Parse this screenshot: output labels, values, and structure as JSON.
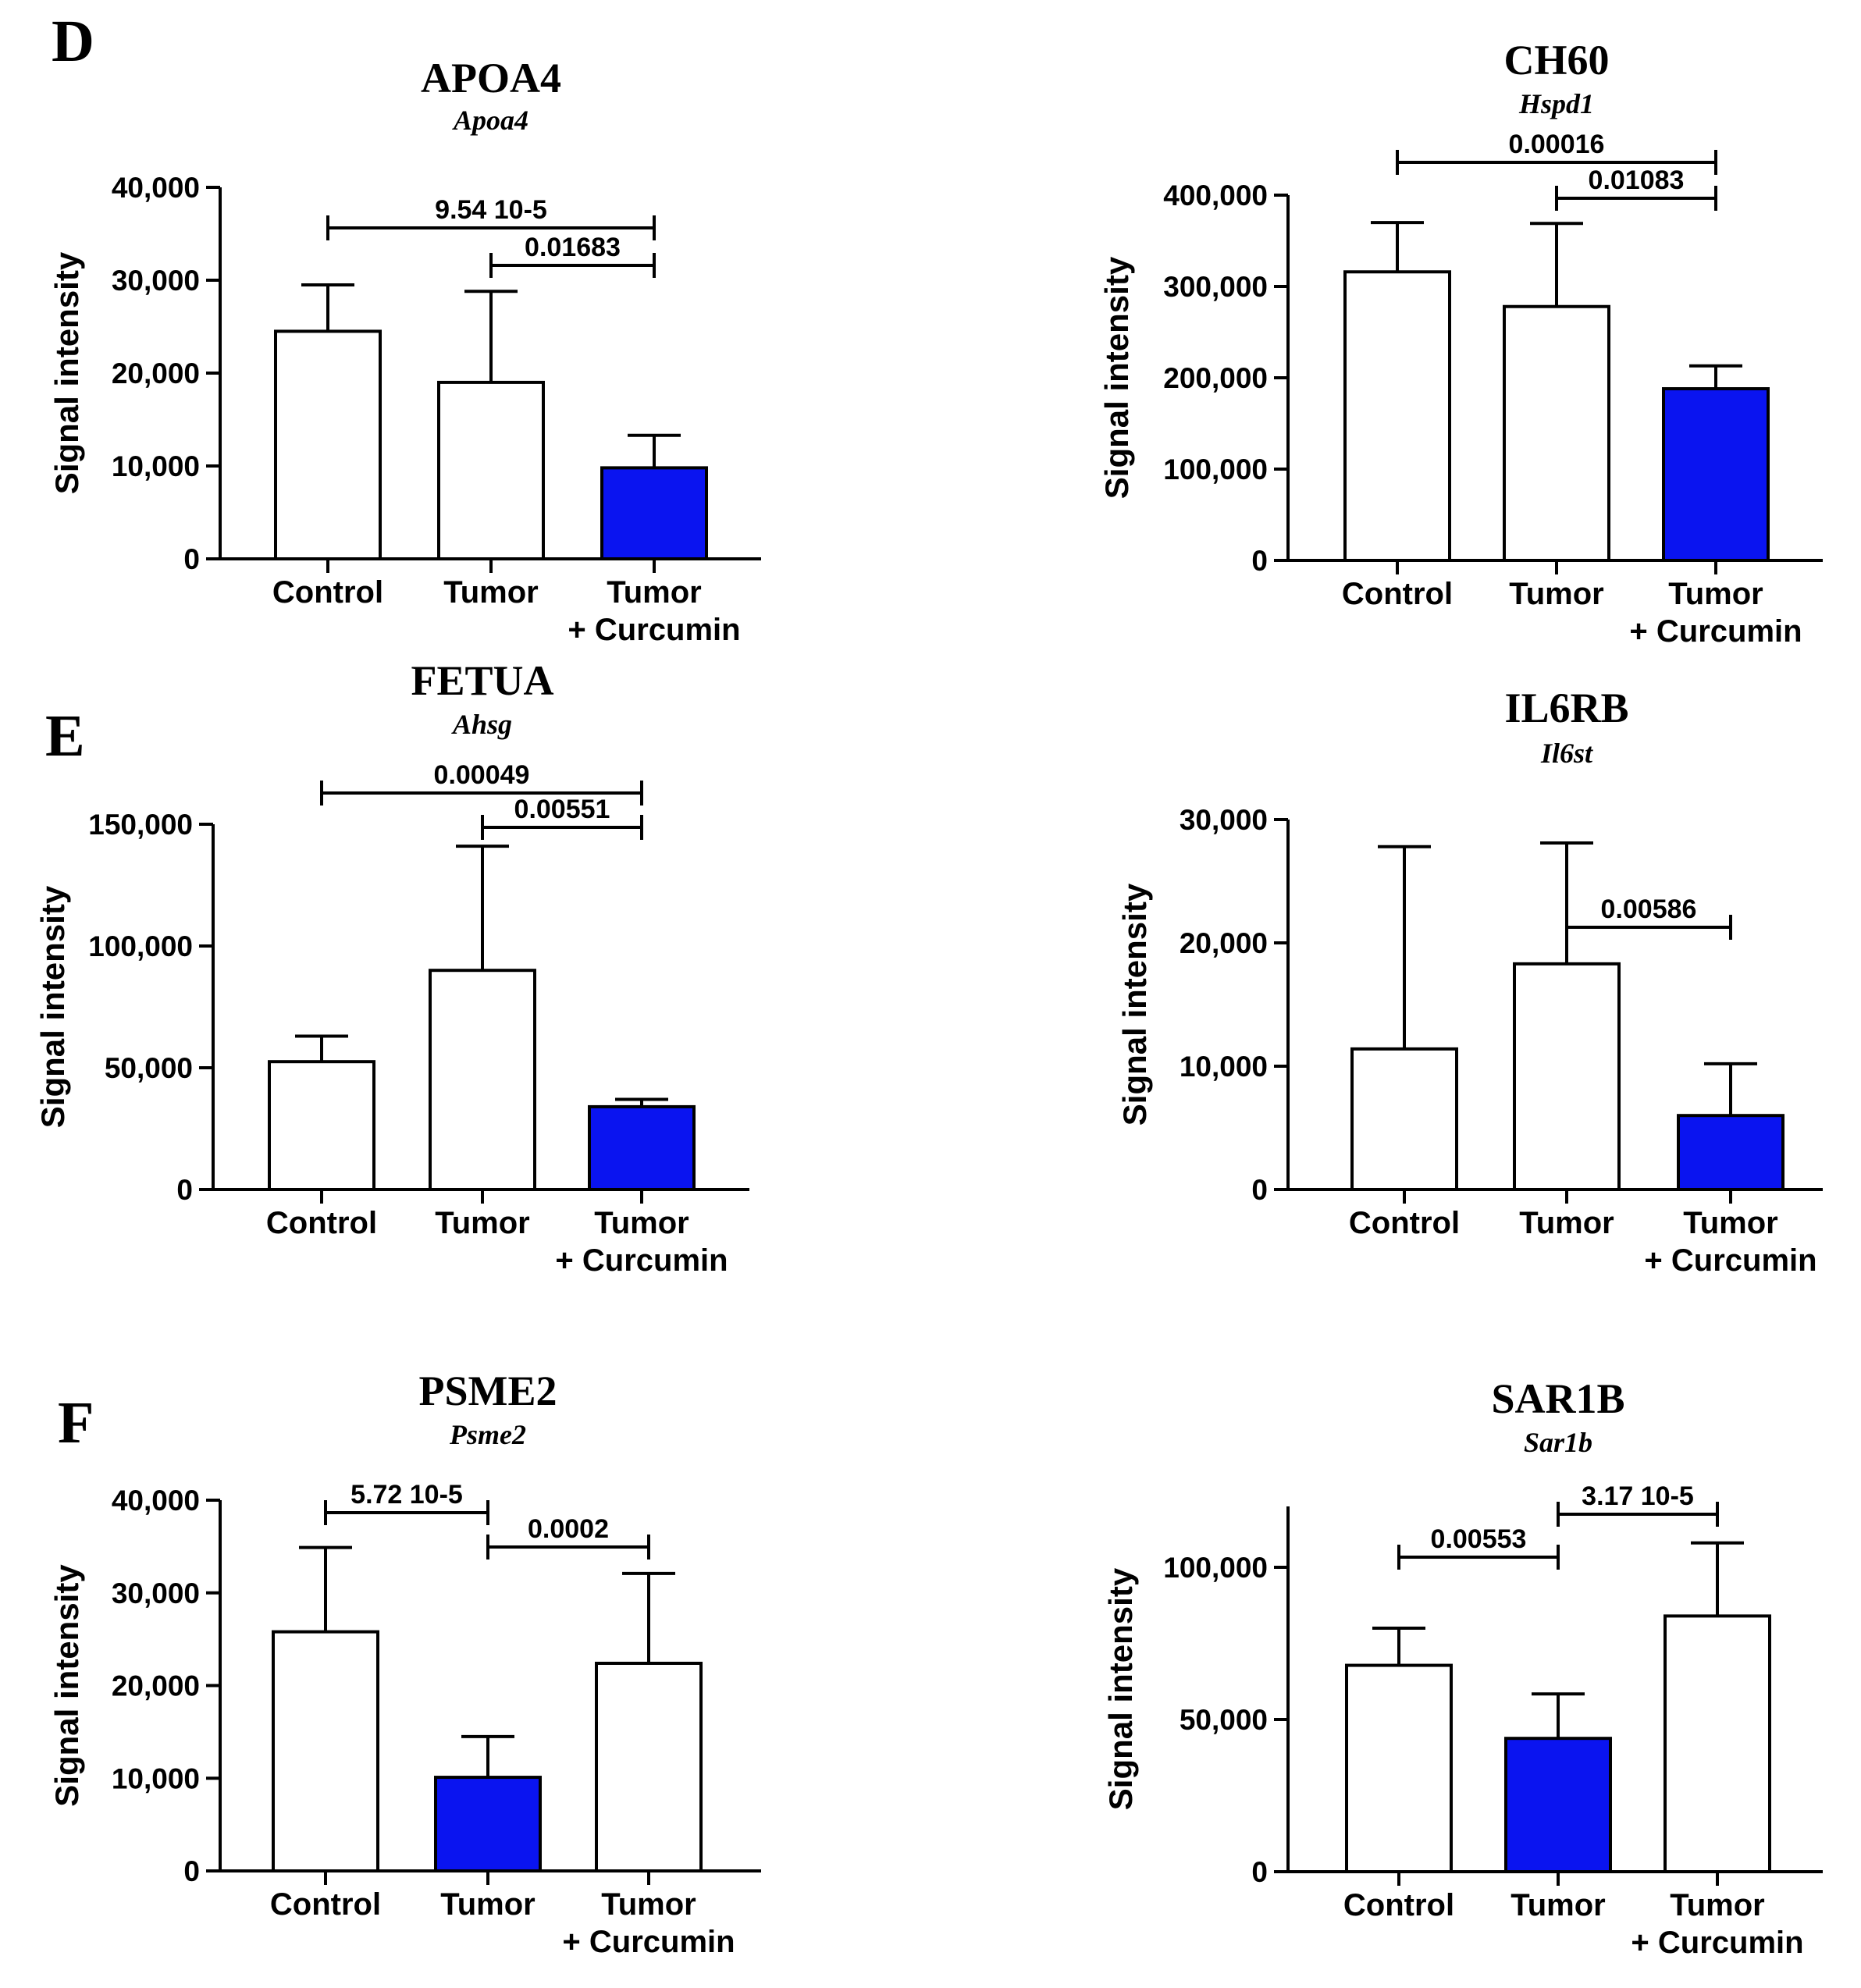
{
  "panel_labels": [
    "D",
    "E",
    "F"
  ],
  "colors": {
    "highlight": "#0a14f0",
    "plain": "#ffffff",
    "stroke": "#000000"
  },
  "chart_data": [
    {
      "type": "bar",
      "title": "APOA4",
      "subtitle": "Apoa4",
      "ylabel": "Signal intensity",
      "categories": [
        [
          "Control"
        ],
        [
          "Tumor"
        ],
        [
          "Tumor",
          "+ Curcumin"
        ]
      ],
      "values": [
        24500,
        19000,
        9800
      ],
      "errors": [
        5000,
        9800,
        3500
      ],
      "highlight": [
        false,
        false,
        true
      ],
      "ylim": [
        0,
        40000
      ],
      "yticks": [
        0,
        10000,
        20000,
        30000,
        40000
      ],
      "ytick_labels": [
        "0",
        "10,000",
        "20,000",
        "30,000",
        "40,000"
      ],
      "comparisons": [
        {
          "from": 0,
          "to": 2,
          "label": "9.54 10-5"
        },
        {
          "from": 1,
          "to": 2,
          "label": "0.01683"
        }
      ]
    },
    {
      "type": "bar",
      "title": "CH60",
      "subtitle": "Hspd1",
      "ylabel": "Signal intensity",
      "categories": [
        [
          "Control"
        ],
        [
          "Tumor"
        ],
        [
          "Tumor",
          "+ Curcumin"
        ]
      ],
      "values": [
        316000,
        278000,
        188000
      ],
      "errors": [
        54000,
        91000,
        25000
      ],
      "highlight": [
        false,
        false,
        true
      ],
      "ylim": [
        0,
        400000
      ],
      "yticks": [
        0,
        100000,
        200000,
        300000,
        400000
      ],
      "ytick_labels": [
        "0",
        "100,000",
        "200,000",
        "300,000",
        "400,000"
      ],
      "comparisons": [
        {
          "from": 0,
          "to": 2,
          "label": "0.00016"
        },
        {
          "from": 1,
          "to": 2,
          "label": "0.01083"
        }
      ]
    },
    {
      "type": "bar",
      "title": "FETUA",
      "subtitle": "Ahsg",
      "ylabel": "Signal intensity",
      "categories": [
        [
          "Control"
        ],
        [
          "Tumor"
        ],
        [
          "Tumor",
          "+ Curcumin"
        ]
      ],
      "values": [
        52500,
        90000,
        34000
      ],
      "errors": [
        10500,
        51000,
        3000
      ],
      "highlight": [
        false,
        false,
        true
      ],
      "ylim": [
        0,
        150000
      ],
      "yticks": [
        0,
        50000,
        100000,
        150000
      ],
      "ytick_labels": [
        "0",
        "50,000",
        "100,000",
        "150,000"
      ],
      "comparisons": [
        {
          "from": 0,
          "to": 2,
          "label": "0.00049"
        },
        {
          "from": 1,
          "to": 2,
          "label": "0.00551"
        }
      ]
    },
    {
      "type": "bar",
      "title": "IL6RB",
      "subtitle": "Il6st",
      "ylabel": "Signal intensity",
      "categories": [
        [
          "Control"
        ],
        [
          "Tumor"
        ],
        [
          "Tumor",
          "+ Curcumin"
        ]
      ],
      "values": [
        11400,
        18300,
        6000
      ],
      "errors": [
        16400,
        9800,
        4200
      ],
      "highlight": [
        false,
        false,
        true
      ],
      "ylim": [
        0,
        30000
      ],
      "yticks": [
        0,
        10000,
        20000,
        30000
      ],
      "ytick_labels": [
        "0",
        "10,000",
        "20,000",
        "30,000"
      ],
      "comparisons": [
        {
          "from": 1,
          "to": 2,
          "label": "0.00586"
        }
      ]
    },
    {
      "type": "bar",
      "title": "PSME2",
      "subtitle": "Psme2",
      "ylabel": "Signal intensity",
      "categories": [
        [
          "Control"
        ],
        [
          "Tumor"
        ],
        [
          "Tumor",
          "+ Curcumin"
        ]
      ],
      "values": [
        25800,
        10100,
        22400
      ],
      "errors": [
        9100,
        4400,
        9700
      ],
      "highlight": [
        false,
        true,
        false
      ],
      "ylim": [
        0,
        40000
      ],
      "yticks": [
        0,
        10000,
        20000,
        30000,
        40000
      ],
      "ytick_labels": [
        "0",
        "10,000",
        "20,000",
        "30,000",
        "40,000"
      ],
      "comparisons": [
        {
          "from": 0,
          "to": 1,
          "label": "5.72 10-5"
        },
        {
          "from": 1,
          "to": 2,
          "label": "0.0002"
        }
      ]
    },
    {
      "type": "bar",
      "title": "SAR1B",
      "subtitle": "Sar1b",
      "ylabel": "Signal intensity",
      "categories": [
        [
          "Control"
        ],
        [
          "Tumor"
        ],
        [
          "Tumor",
          "+ Curcumin"
        ]
      ],
      "values": [
        67800,
        43800,
        84000
      ],
      "errors": [
        12200,
        14600,
        24000
      ],
      "highlight": [
        false,
        true,
        false
      ],
      "ylim": [
        0,
        120000
      ],
      "yticks": [
        0,
        50000,
        100000
      ],
      "ytick_labels": [
        "0",
        "50,000",
        "100,000"
      ],
      "comparisons": [
        {
          "from": 0,
          "to": 1,
          "label": "0.00553"
        },
        {
          "from": 1,
          "to": 2,
          "label": "3.17 10-5"
        }
      ]
    }
  ]
}
